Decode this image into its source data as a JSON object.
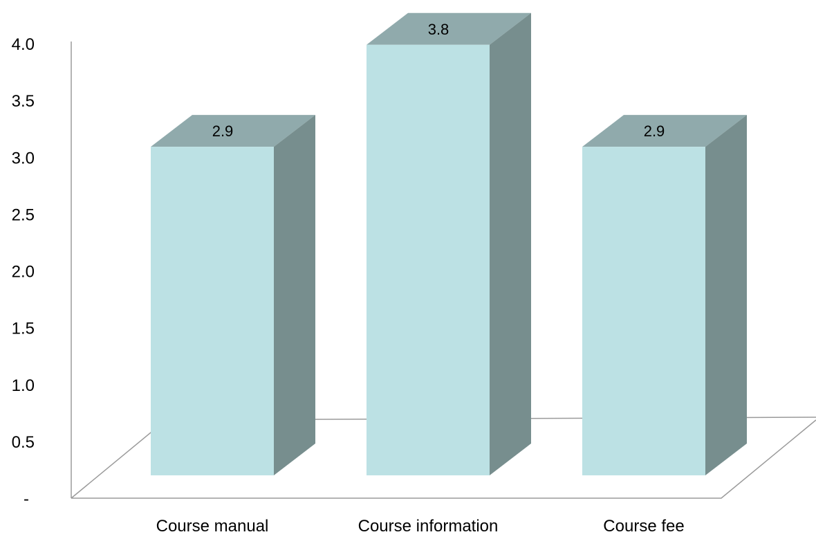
{
  "chart_data": {
    "type": "bar",
    "style": "3d-column",
    "categories": [
      "Course manual",
      "Course information",
      "Course fee"
    ],
    "values": [
      2.9,
      3.8,
      2.9
    ],
    "data_labels": [
      "2.9",
      "3.8",
      "2.9"
    ],
    "title": "",
    "xlabel": "",
    "ylabel": "",
    "ylim": [
      0,
      4.0
    ],
    "yticks": [
      0,
      0.5,
      1.0,
      1.5,
      2.0,
      2.5,
      3.0,
      3.5,
      4.0
    ],
    "ytick_labels": [
      "-",
      "0.5",
      "1.0",
      "1.5",
      "2.0",
      "2.5",
      "3.0",
      "3.5",
      "4.0"
    ],
    "grid": false,
    "legend": "none",
    "colors": {
      "front": "#bce1e4",
      "top": "#90aaac",
      "side": "#778e8e",
      "axis": "#9a9a9a"
    }
  }
}
